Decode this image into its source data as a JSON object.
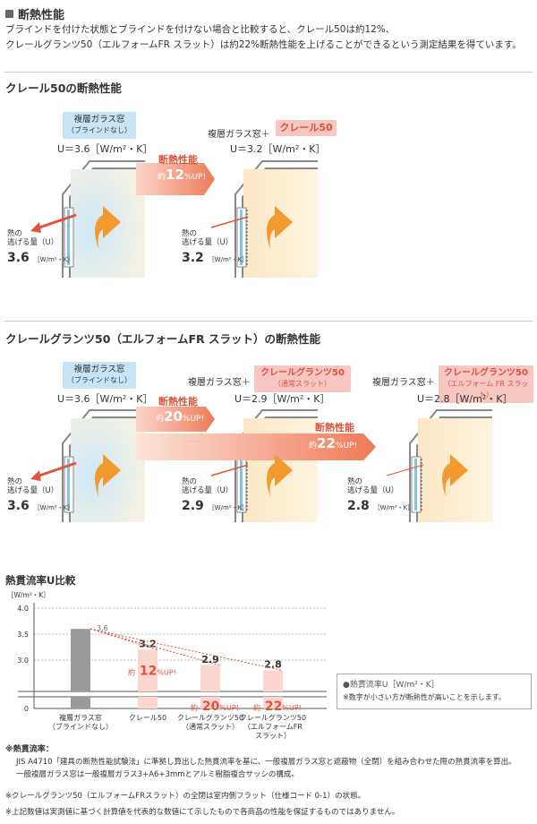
{
  "page": {
    "title": "断熱性能",
    "intro_line1": "ブラインドを付けた状態とブラインドを付けない場合と比較すると、クレール50は約12%、",
    "intro_line2": "クレールグランツ50（エルフォームFR スラット）は約22%断熱性能を上げることができるという測定結果を得ています。"
  },
  "section1": {
    "heading": "クレール50の断熱性能",
    "left_tag": "複層ガラス窓",
    "left_tag_sub": "（ブラインドなし）",
    "left_u": "U＝3.6［W/m²・K］",
    "right_prefix": "複層ガラス窓＋",
    "right_tag": "クレール50",
    "right_u": "U＝3.2［W/m²・K］",
    "arrow_label": "断熱性能",
    "arrow_pre": "約",
    "arrow_num": "12",
    "arrow_suf": "%UP!",
    "heat_label1": "熱の",
    "heat_label2": "逃げる量（U）",
    "left_heat": "3.6",
    "right_heat": "3.2",
    "unit": "［W/m²・K］"
  },
  "section2": {
    "heading": "クレールグランツ50（エルフォームFR スラット）の断熱性能",
    "left_tag": "複層ガラス窓",
    "left_tag_sub": "（ブラインドなし）",
    "left_u": "U＝3.6［W/m²・K］",
    "mid_prefix": "複層ガラス窓＋",
    "mid_tag": "クレールグランツ50",
    "mid_tag_sub": "（通常スラット）",
    "mid_u": "U＝2.9［W/m²・K］",
    "right_prefix": "複層ガラス窓＋",
    "right_tag": "クレールグランツ50",
    "right_tag_sub": "（エルフォーム FR スラット）",
    "right_u": "U＝2.8［W/m²・K］",
    "arrow1_label": "断熱性能",
    "arrow1_num": "20",
    "arrow2_label": "断熱性能",
    "arrow2_num": "22",
    "arrow_pre": "約",
    "arrow_suf": "%UP!",
    "heat_label1": "熱の",
    "heat_label2": "逃げる量（U）",
    "left_heat": "3.6",
    "mid_heat": "2.9",
    "right_heat": "2.8",
    "unit": "［W/m²・K］"
  },
  "chart_section": {
    "heading": "熱貫流率U比較",
    "y_unit": "［W/m²・K］",
    "legend_title": "●熱貫流率U［W/m²・K］",
    "legend_note": "※数字が小さい方が断熱性が高いことを示します。",
    "pct_pre": "約",
    "pct_suf": "%UP!"
  },
  "chart_data": {
    "type": "bar",
    "categories": [
      [
        "複層ガラス窓",
        "（ブラインドなし）"
      ],
      [
        "クレール50"
      ],
      [
        "クレールグランツ50",
        "（通常スラット）"
      ],
      [
        "クレールグランツ50",
        "（エルフォームFR",
        "スラット）"
      ]
    ],
    "values": [
      3.6,
      3.2,
      2.9,
      2.8
    ],
    "value_labels": [
      "3.6",
      "3.2",
      "2.9",
      "2.8"
    ],
    "improvement_pct": [
      null,
      "12",
      "20",
      "22"
    ],
    "y_ticks": [
      "0",
      "3.0",
      "3.5",
      "4.0"
    ],
    "y_axis_break": true,
    "colors": {
      "baseline": "#9a9a9a",
      "improved": "#fbd5d0",
      "accent": "#e0533c"
    }
  },
  "notes": {
    "n1_title": "※熱貫流率：",
    "n1_line1": "JIS A4710「建具の断熱性能試験法」に準拠し算出した熱貫流率を基に、一般複層ガラス窓と遮蔽物（全閉）を組み合わせた際の熱貫流率を算出。",
    "n1_line2": "一般複層ガラス窓は一般複層ガラス3+A6+3mmとアルミ樹脂複合サッシの構成。",
    "n2": "※クレールグランツ50（エルフォームFRスラット）の全閉は室内側フラット（仕様コード 0-1）の状態。",
    "n3": "※上記数値は実測値に基づく計算値を代表的な数値にて示したもので各商品の性能を保証するものではありません。"
  }
}
